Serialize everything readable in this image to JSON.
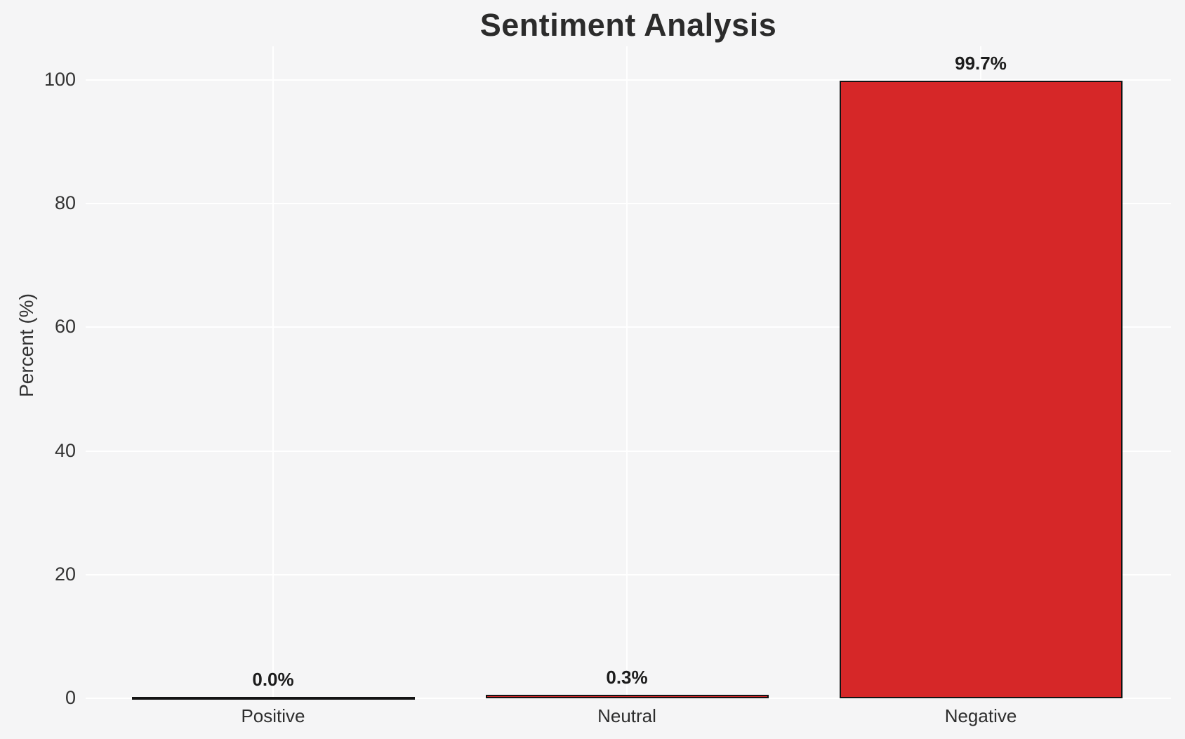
{
  "chart_data": {
    "type": "bar",
    "title": "Sentiment Analysis",
    "xlabel": "",
    "ylabel": "Percent (%)",
    "categories": [
      "Positive",
      "Neutral",
      "Negative"
    ],
    "values": [
      0.0,
      0.3,
      99.7
    ],
    "value_labels": [
      "0.0%",
      "0.3%",
      "99.7%"
    ],
    "yticks": [
      0,
      20,
      40,
      60,
      80,
      100
    ],
    "ylim": [
      0,
      100
    ],
    "grid": true,
    "legend_position": "none",
    "colors": {
      "background": "#f5f5f6",
      "grid": "#ffffff",
      "bar_fill": "#d62728",
      "bar_edge": "#141414",
      "title_text": "#2b2b2b",
      "tick_text": "#333333",
      "value_label_text": "#1c1c1c"
    }
  }
}
